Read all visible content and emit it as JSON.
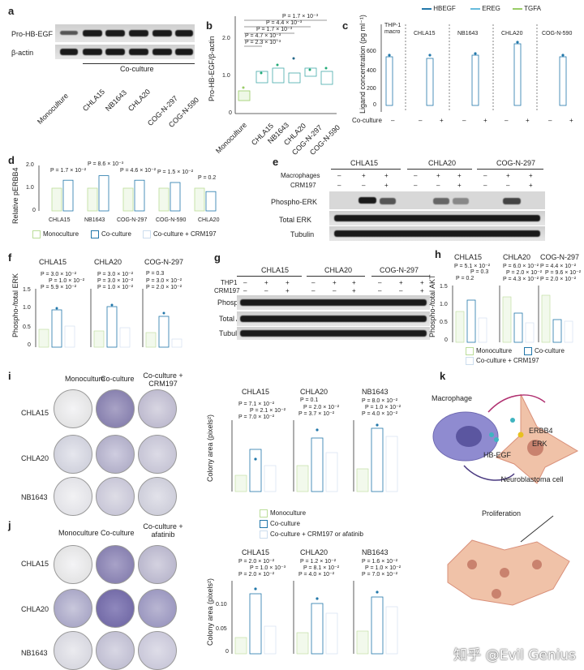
{
  "panels": {
    "a": {
      "label": "a",
      "rows": [
        "Pro-HB-EGF",
        "β-actin"
      ],
      "group": "Co-culture",
      "lanes": [
        "Monoculture",
        "CHLA15",
        "NB1643",
        "CHLA20",
        "COG-N-297",
        "COG-N-590"
      ]
    },
    "b": {
      "label": "b",
      "ylabel": "Pro-HB-EGF/β-actin",
      "pvalues": [
        "P = 1.7 × 10⁻³",
        "P = 4.4 × 10⁻³",
        "P = 1.7 × 10⁻³",
        "P = 4.7 × 10⁻³",
        "P = 2.3 × 10⁻³"
      ],
      "yticks": [
        "0",
        "0.5",
        "1.0",
        "1.5",
        "2.0"
      ],
      "categories": [
        "Monoculture",
        "CHLA15",
        "NB1643",
        "CHLA20",
        "COG-N-297",
        "COG-N-590"
      ]
    },
    "c": {
      "label": "c",
      "legend": [
        "HBEGF",
        "EREG",
        "TGFA"
      ],
      "ylabel": "Ligand concentration (pg ml⁻¹)",
      "yticks": [
        "0",
        "200",
        "400",
        "600"
      ],
      "groups": [
        "THP-1 macro",
        "CHLA15",
        "NB1643",
        "CHLA20",
        "COG-N-590"
      ],
      "coculture_label": "Co-culture",
      "coculture_marks": [
        "–",
        "–",
        "+",
        "–",
        "+",
        "–",
        "+",
        "–",
        "+"
      ]
    },
    "d": {
      "label": "d",
      "ylabel": "Relative pERBB4",
      "pvalues": [
        "P = 1.7 × 10⁻²",
        "P = 8.6 × 10⁻³",
        "P = 4.6 × 10⁻²",
        "P = 1.5 × 10⁻²",
        "P = 0.2"
      ],
      "yticks": [
        "0",
        "0.5",
        "1.0",
        "1.5",
        "2.0"
      ],
      "categories": [
        "CHLA15",
        "NB1643",
        "COG-N-297",
        "COG-N-590",
        "CHLA20"
      ],
      "legend": [
        "Monoculture",
        "Co-culture",
        "Co-culture + CRM197"
      ]
    },
    "e": {
      "label": "e",
      "lines": [
        "CHLA15",
        "CHLA20",
        "COG-N-297"
      ],
      "conditions": [
        "Macrophages",
        "CRM197"
      ],
      "marks_macro": [
        "–",
        "+",
        "+",
        "–",
        "+",
        "+",
        "–",
        "+",
        "+"
      ],
      "marks_crm": [
        "–",
        "–",
        "+",
        "–",
        "–",
        "+",
        "–",
        "–",
        "+"
      ],
      "rows": [
        "Phospho-ERK",
        "Total ERK",
        "Tubulin"
      ]
    },
    "f": {
      "label": "f",
      "ylabel": "Phospho-/total ERK",
      "titles": [
        "CHLA15",
        "CHLA20",
        "COG-N-297"
      ],
      "pvalues": [
        [
          "P = 3.0 × 10⁻²",
          "P = 1.0 × 10⁻²",
          "P = 5.9 × 10⁻²"
        ],
        [
          "P = 3.0 × 10⁻²",
          "P = 3.0 × 10⁻²",
          "P = 1.0 × 10⁻²"
        ],
        [
          "P = 0.3",
          "P = 3.0 × 10⁻²",
          "P = 2.0 × 10⁻²"
        ]
      ],
      "yticks": [
        "0",
        "0.5",
        "1.0",
        "1.5"
      ]
    },
    "g": {
      "label": "g",
      "lines": [
        "CHLA15",
        "CHLA20",
        "COG-N-297"
      ],
      "conditions": [
        "THP1",
        "CRM197"
      ],
      "marks_thp": [
        "–",
        "+",
        "+",
        "–",
        "+",
        "+",
        "–",
        "+",
        "+"
      ],
      "marks_crm": [
        "–",
        "–",
        "+",
        "–",
        "–",
        "+",
        "–",
        "–",
        "+"
      ],
      "rows": [
        "Phospho-AKT",
        "Total AKT",
        "Tubulin"
      ]
    },
    "h": {
      "label": "h",
      "ylabel": "Phospho-/total AKT",
      "titles": [
        "CHLA15",
        "CHLA20",
        "COG-N-297"
      ],
      "pvalues": [
        [
          "P = 5.1 × 10⁻²",
          "P = 0.3",
          "P = 0.2"
        ],
        [
          "P = 6.0 × 10⁻²",
          "P = 2.0 × 10⁻²",
          "P = 4.3 × 10⁻²"
        ],
        [
          "P = 4.4 × 10⁻²",
          "P = 9.6 × 10⁻²",
          "P = 2.0 × 10⁻²"
        ]
      ],
      "yticks": [
        "0",
        "0.5",
        "1.0",
        "1.5"
      ],
      "legend": [
        "Monoculture",
        "Co-culture",
        "Co-culture + CRM197"
      ]
    },
    "i": {
      "label": "i",
      "cols": [
        "Monoculture",
        "Co-culture",
        "Co-culture + CRM197"
      ],
      "rows": [
        "CHLA15",
        "CHLA20",
        "NB1643"
      ],
      "ylabel": "Colony area (pixels²)",
      "titles": [
        "CHLA15",
        "CHLA20",
        "NB1643"
      ],
      "pvalues": [
        [
          "P = 7.1 × 10⁻²",
          "P = 2.1 × 10⁻²",
          "P = 7.0 × 10⁻²"
        ],
        [
          "P = 0.1",
          "P = 2.0 × 10⁻²",
          "P = 3.7 × 10⁻²"
        ],
        [
          "P = 8.0 × 10⁻²",
          "P = 1.0 × 10⁻²",
          "P = 4.0 × 10⁻²"
        ]
      ]
    },
    "j": {
      "label": "j",
      "cols": [
        "Monoculture",
        "Co-culture",
        "Co-culture + afatinib"
      ],
      "rows": [
        "CHLA15",
        "CHLA20",
        "NB1643"
      ],
      "ylabel": "Colony area (pixels²)",
      "titles": [
        "CHLA15",
        "CHLA20",
        "NB1643"
      ],
      "pvalues": [
        [
          "P = 2.0 × 10⁻²",
          "P = 1.0 × 10⁻³",
          "P = 2.0 × 10⁻²"
        ],
        [
          "P = 1.2 × 10⁻²",
          "P = 8.1 × 10⁻²",
          "P = 4.0 × 10⁻²"
        ],
        [
          "P = 1.6 × 10⁻²",
          "P = 1.0 × 10⁻²",
          "P = 7.0 × 10⁻²"
        ]
      ],
      "yticks": [
        "0",
        "0.05",
        "0.10"
      ]
    },
    "ij_legend": [
      "Monoculture",
      "Co-culture",
      "Co-culture + CRM197 or afatinib"
    ],
    "k": {
      "label": "k",
      "labels": [
        "Macrophage",
        "HB-EGF",
        "ERBB4",
        "ERK",
        "Neuroblastoma cell",
        "Proliferation"
      ]
    }
  },
  "watermark": "知乎 @Evil Genius",
  "chart_data": [
    {
      "type": "bar",
      "title": "",
      "ylabel": "Relative pERBB4",
      "categories": [
        "CHLA15",
        "NB1643",
        "COG-N-297",
        "COG-N-590",
        "CHLA20"
      ],
      "series": [
        {
          "name": "Monoculture",
          "values": [
            1.0,
            1.0,
            1.0,
            1.0,
            1.0
          ]
        },
        {
          "name": "Co-culture",
          "values": [
            1.35,
            1.55,
            1.35,
            1.25,
            0.85
          ]
        }
      ],
      "ylim": [
        0,
        2
      ]
    }
  ]
}
